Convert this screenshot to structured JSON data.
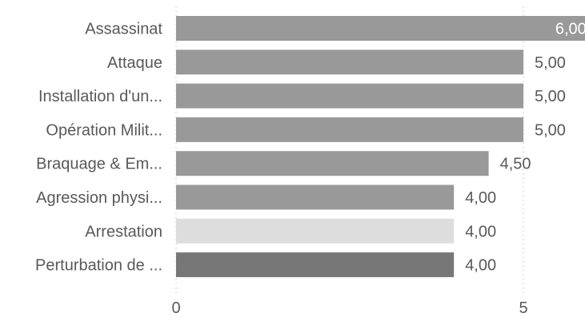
{
  "chart_data": {
    "type": "bar",
    "orientation": "horizontal",
    "categories": [
      "Assassinat",
      "Attaque",
      "Installation d'un...",
      "Opération Milit...",
      "Braquage & Em...",
      "Agression physi...",
      "Arrestation",
      "Perturbation de ..."
    ],
    "values": [
      6.0,
      5.0,
      5.0,
      5.0,
      4.5,
      4.0,
      4.0,
      4.0
    ],
    "value_labels": [
      "6,00",
      "5,00",
      "5,00",
      "5,00",
      "4,50",
      "4,00",
      "4,00",
      "4,00"
    ],
    "bar_colors": [
      "#999999",
      "#999999",
      "#999999",
      "#999999",
      "#999999",
      "#999999",
      "#dddddd",
      "#777777"
    ],
    "x_ticks": [
      0,
      5
    ],
    "x_tick_labels": [
      "0",
      "5"
    ],
    "xlim": [
      0,
      6
    ],
    "title": "",
    "xlabel": "",
    "ylabel": "",
    "grid": "vertical dotted at ticks",
    "legend": "none"
  },
  "colors": {
    "label_text": "#595959",
    "gridline": "#c8c8c8",
    "inside_label_text": "#ffffff"
  }
}
